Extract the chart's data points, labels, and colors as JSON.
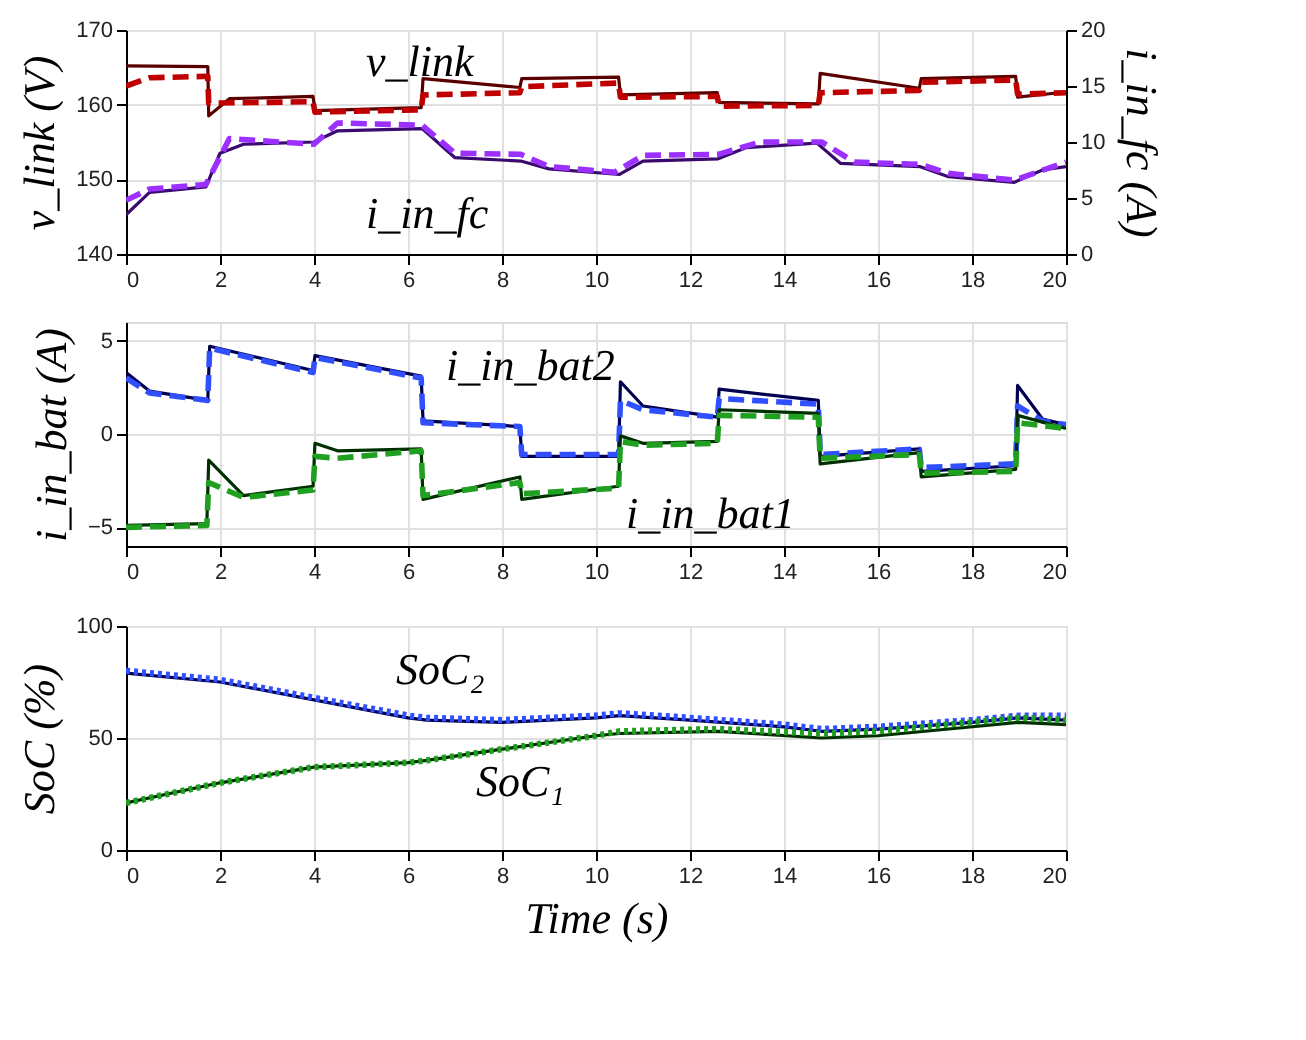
{
  "chart_data": [
    {
      "type": "line",
      "ylabel": "v_link (V)",
      "y2label": "i_in_fc (A)",
      "xlim": [
        0,
        20
      ],
      "xticks": [
        0,
        2,
        4,
        6,
        8,
        10,
        12,
        14,
        16,
        18,
        20
      ],
      "ylim": [
        140,
        170
      ],
      "yticks": [
        140,
        150,
        160,
        170
      ],
      "y2lim": [
        0,
        20
      ],
      "y2ticks": [
        0,
        5,
        10,
        15,
        20
      ],
      "grid": true,
      "annotations": [
        "v_link",
        "i_in_fc"
      ],
      "series": [
        {
          "color": "#5a0000",
          "line_style": "solid",
          "x": [
            0,
            1.74,
            1.76,
            2.2,
            3.98,
            4.02,
            6.28,
            6.32,
            8.38,
            8.42,
            10.48,
            10.52,
            12.58,
            12.62,
            14.73,
            14.77,
            16.88,
            16.92,
            18.93,
            18.97,
            20
          ],
          "values": [
            165.2,
            165.1,
            158.5,
            160.8,
            161.1,
            159.2,
            159.6,
            163.5,
            162.3,
            163.5,
            163.7,
            161.3,
            161.6,
            160.3,
            160.1,
            164.2,
            162.2,
            163.5,
            163.8,
            161.0,
            161.7
          ]
        },
        {
          "color": "#c00000",
          "line_style": "dashed",
          "x": [
            0,
            0.5,
            1.74,
            1.76,
            3.98,
            4.02,
            6.28,
            6.32,
            8.38,
            8.42,
            10.48,
            10.52,
            12.58,
            12.62,
            14.73,
            14.77,
            16.88,
            16.92,
            18.93,
            18.97,
            20
          ],
          "values": [
            162.5,
            163.6,
            163.8,
            160.2,
            160.4,
            159.0,
            159.3,
            161.3,
            161.6,
            162.4,
            162.9,
            161.0,
            161.1,
            159.8,
            159.9,
            161.6,
            161.9,
            163.0,
            163.3,
            161.4,
            161.6
          ]
        },
        {
          "color": "#3a0a6e",
          "line_style": "solid",
          "axis": "y2",
          "x": [
            0,
            0.5,
            1.7,
            2.0,
            2.5,
            4.0,
            4.5,
            6.3,
            7.0,
            8.4,
            9.0,
            10.5,
            11.0,
            12.6,
            13.2,
            14.7,
            15.2,
            16.9,
            17.5,
            18.9,
            19.5,
            20
          ],
          "values": [
            3.5,
            5.5,
            6.0,
            9.0,
            9.8,
            10.0,
            11.0,
            11.2,
            8.6,
            8.3,
            7.6,
            7.1,
            8.3,
            8.5,
            9.5,
            9.9,
            8.1,
            7.8,
            6.9,
            6.4,
            7.5,
            7.8
          ]
        },
        {
          "color": "#9b30ff",
          "line_style": "dashed",
          "axis": "y2",
          "x": [
            0,
            0.5,
            1.7,
            2.2,
            4.0,
            4.5,
            6.3,
            7.0,
            8.4,
            9.0,
            10.4,
            11.0,
            12.6,
            13.5,
            14.8,
            15.5,
            16.9,
            17.5,
            18.9,
            20
          ],
          "values": [
            4.8,
            5.8,
            6.2,
            10.3,
            9.8,
            11.7,
            11.5,
            9.0,
            8.9,
            7.8,
            7.3,
            8.8,
            8.9,
            10.0,
            10.0,
            8.2,
            8.0,
            7.2,
            6.6,
            8.2
          ]
        }
      ]
    },
    {
      "type": "line",
      "ylabel": "i_in_bat (A)",
      "xlim": [
        0,
        20
      ],
      "xticks": [
        0,
        2,
        4,
        6,
        8,
        10,
        12,
        14,
        16,
        18,
        20
      ],
      "ylim": [
        -6,
        6
      ],
      "yticks": [
        -5,
        0,
        5
      ],
      "grid": true,
      "annotations": [
        "i_in_bat2",
        "i_in_bat1"
      ],
      "series": [
        {
          "color": "#000050",
          "line_style": "solid",
          "x": [
            0,
            0.5,
            1.74,
            1.78,
            3.98,
            4.02,
            6.28,
            6.32,
            8.38,
            8.42,
            10.48,
            10.52,
            11.0,
            12.58,
            12.62,
            14.73,
            14.77,
            16.88,
            16.92,
            18.93,
            18.97,
            19.5,
            20
          ],
          "values": [
            3.3,
            2.3,
            1.8,
            4.7,
            3.4,
            4.2,
            3.1,
            0.7,
            0.4,
            -1.2,
            -1.2,
            2.8,
            1.5,
            0.9,
            2.4,
            1.8,
            -1.2,
            -0.8,
            -2.0,
            -1.7,
            2.6,
            0.8,
            0.5
          ]
        },
        {
          "color": "#3050ff",
          "line_style": "dashed",
          "x": [
            0,
            0.5,
            1.74,
            1.78,
            3.98,
            4.02,
            6.28,
            6.32,
            8.38,
            8.42,
            10.48,
            10.52,
            11.0,
            12.58,
            12.62,
            14.73,
            14.77,
            16.88,
            16.92,
            18.93,
            18.97,
            19.5,
            20
          ],
          "values": [
            3.0,
            2.2,
            1.8,
            4.6,
            3.3,
            4.1,
            3.0,
            0.6,
            0.4,
            -1.1,
            -1.1,
            1.8,
            1.3,
            0.9,
            1.9,
            1.6,
            -1.1,
            -0.8,
            -1.8,
            -1.6,
            1.5,
            0.7,
            0.5
          ]
        },
        {
          "color": "#003000",
          "line_style": "solid",
          "x": [
            0,
            1.72,
            1.76,
            2.5,
            3.98,
            4.02,
            4.5,
            6.28,
            6.32,
            8.38,
            8.42,
            10.48,
            10.52,
            11.0,
            12.58,
            12.62,
            14.73,
            14.77,
            16.88,
            16.92,
            18.93,
            18.97,
            20
          ],
          "values": [
            -4.9,
            -4.8,
            -1.4,
            -3.3,
            -2.8,
            -0.5,
            -0.9,
            -0.8,
            -3.5,
            -2.3,
            -3.5,
            -2.8,
            -0.1,
            -0.5,
            -0.4,
            1.3,
            1.1,
            -1.6,
            -1.0,
            -2.3,
            -1.9,
            1.0,
            0.3
          ]
        },
        {
          "color": "#20a020",
          "line_style": "dashed",
          "x": [
            0,
            1.72,
            1.76,
            2.5,
            3.98,
            4.02,
            4.5,
            6.28,
            6.32,
            8.38,
            8.42,
            10.48,
            10.52,
            11.0,
            12.58,
            12.62,
            14.73,
            14.77,
            16.88,
            16.92,
            18.93,
            18.97,
            20
          ],
          "values": [
            -5.0,
            -4.9,
            -2.6,
            -3.4,
            -3.0,
            -1.2,
            -1.3,
            -0.9,
            -3.3,
            -2.6,
            -3.2,
            -2.9,
            -0.4,
            -0.6,
            -0.5,
            1.0,
            0.9,
            -1.3,
            -1.1,
            -2.1,
            -2.0,
            0.6,
            0.3
          ]
        }
      ]
    },
    {
      "type": "line",
      "xlabel": "Time (s)",
      "ylabel": "SoC (%)",
      "xlim": [
        0,
        20
      ],
      "xticks": [
        0,
        2,
        4,
        6,
        8,
        10,
        12,
        14,
        16,
        18,
        20
      ],
      "ylim": [
        0,
        100
      ],
      "yticks": [
        0,
        50,
        100
      ],
      "grid": true,
      "annotations": [
        "SoC₂",
        "SoC₁"
      ],
      "series": [
        {
          "color": "#000050",
          "line_style": "solid",
          "x": [
            0,
            2,
            4,
            6,
            6.4,
            8,
            10,
            10.5,
            12,
            14,
            14.8,
            16,
            18,
            19,
            20
          ],
          "values": [
            79,
            75,
            67,
            59,
            58,
            57,
            59,
            60,
            58,
            55,
            53,
            54,
            57,
            59,
            58
          ]
        },
        {
          "color": "#3050ff",
          "line_style": "dotted",
          "x": [
            0,
            2,
            4,
            6,
            6.4,
            8,
            10,
            10.5,
            12,
            14,
            14.8,
            16,
            18,
            19,
            20
          ],
          "values": [
            80,
            76,
            68,
            60,
            59,
            58,
            60,
            61,
            59,
            56,
            54,
            55,
            58,
            60,
            60
          ]
        },
        {
          "color": "#003000",
          "line_style": "solid",
          "x": [
            0,
            2,
            4,
            6,
            6.4,
            8,
            10,
            10.5,
            12.6,
            14.8,
            16,
            17,
            19,
            20
          ],
          "values": [
            21,
            30,
            37,
            39,
            40,
            45,
            51,
            52,
            53,
            50,
            51,
            53,
            57,
            56
          ]
        },
        {
          "color": "#20a020",
          "line_style": "dotted",
          "x": [
            0,
            2,
            4,
            6,
            6.4,
            8,
            10,
            10.5,
            12.6,
            14.8,
            16,
            17,
            19,
            20
          ],
          "values": [
            21,
            30,
            37,
            39,
            40,
            45,
            51,
            53,
            54,
            52,
            53,
            55,
            59,
            58
          ]
        }
      ]
    }
  ]
}
